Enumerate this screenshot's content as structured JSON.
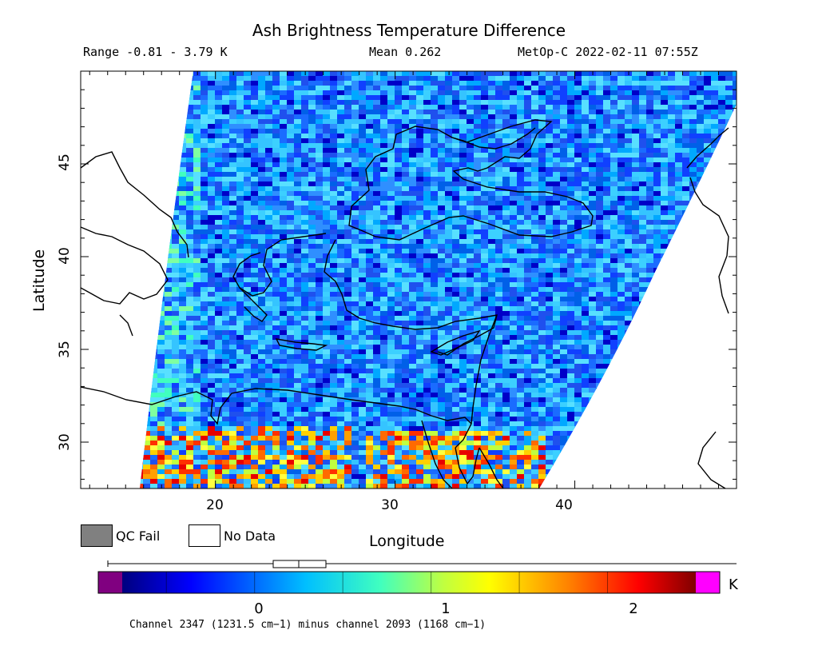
{
  "header": {
    "title": "Ash Brightness Temperature Difference",
    "range": "Range -0.81 - 3.79 K",
    "mean": "Mean 0.262",
    "satellite_time": "MetOp-C 2022-02-11 07:55Z"
  },
  "axes": {
    "xlabel": "Longitude",
    "ylabel": "Latitude",
    "x_ticks": [
      "20",
      "30",
      "40"
    ],
    "y_ticks": [
      "45",
      "40",
      "35",
      "30"
    ],
    "lon_range": [
      12.5,
      49
    ],
    "lat_range": [
      27.5,
      50
    ]
  },
  "legend": {
    "qc_fail": "QC Fail",
    "no_data": "No Data",
    "qc_fail_color": "#808080",
    "no_data_color": "#ffffff"
  },
  "colorbar": {
    "unit": "K",
    "ticks": [
      "0",
      "1",
      "2"
    ],
    "tick_values": [
      0,
      1,
      2
    ],
    "value_range": [
      -0.75,
      2.5
    ],
    "box_plot": {
      "min": -0.81,
      "q1": 0.08,
      "median": 0.22,
      "q3": 0.38,
      "max": 3.79
    },
    "under_color": "#800080",
    "over_color": "#ff00ff"
  },
  "footer": "Channel 2347 (1231.5 cm−1) minus channel 2093 (1168 cm−1)"
}
